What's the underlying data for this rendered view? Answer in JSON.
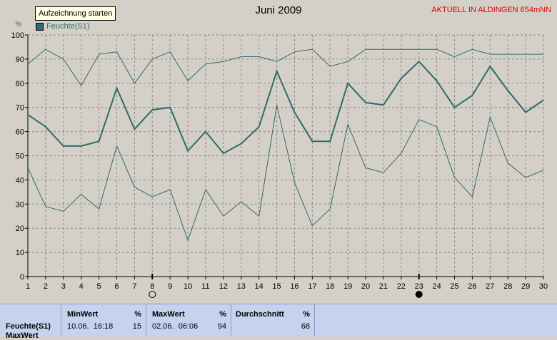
{
  "tooltip": "Aufzeichnung starten",
  "location": "AKTUELL IN ALDINGEN 654mNN",
  "stats": {
    "label": "Feuchte(S1)",
    "label2": "MaxWert",
    "min": {
      "header": "MinWert",
      "unit": "%",
      "when": "10.06.  16:18",
      "value": "15"
    },
    "max": {
      "header": "MaxWert",
      "unit": "%",
      "when": "02.06.  06:06",
      "value": "94"
    },
    "avg": {
      "header": "Durchschnitt",
      "unit": "%",
      "value": "68"
    }
  },
  "colors": {
    "series": "#2f6b6b",
    "grid": "#8a8a8a",
    "plot_bg": "#d4d0c8"
  },
  "chart_data": {
    "type": "line",
    "title": "Juni 2009",
    "ylabel": "%",
    "ylim": [
      0,
      100
    ],
    "yticks": [
      0,
      10,
      20,
      30,
      40,
      50,
      60,
      70,
      80,
      90,
      100
    ],
    "xlim": [
      1,
      30
    ],
    "x": [
      1,
      2,
      3,
      4,
      5,
      6,
      7,
      8,
      9,
      10,
      11,
      12,
      13,
      14,
      15,
      16,
      17,
      18,
      19,
      20,
      21,
      22,
      23,
      24,
      25,
      26,
      27,
      28,
      29,
      30
    ],
    "grid": true,
    "legend": {
      "position": "top-left"
    },
    "markers": [
      {
        "x": 8,
        "symbol": "open-circle"
      },
      {
        "x": 23,
        "symbol": "filled-circle"
      }
    ],
    "series": [
      {
        "name": "Feuchte(S1)",
        "role": "mean",
        "values": [
          67,
          62,
          54,
          54,
          56,
          78,
          61,
          69,
          70,
          52,
          60,
          51,
          55,
          62,
          85,
          68,
          56,
          56,
          80,
          72,
          71,
          82,
          89,
          81,
          70,
          75,
          87,
          77,
          68,
          73
        ]
      },
      {
        "role": "max",
        "values": [
          88,
          94,
          90,
          79,
          92,
          93,
          80,
          90,
          93,
          81,
          88,
          89,
          91,
          91,
          89,
          93,
          94,
          87,
          89,
          94,
          94,
          94,
          94,
          94,
          91,
          94,
          92,
          92,
          92,
          92
        ]
      },
      {
        "role": "min",
        "values": [
          45,
          29,
          27,
          34,
          28,
          54,
          37,
          33,
          36,
          15,
          36,
          25,
          31,
          25,
          71,
          39,
          21,
          28,
          63,
          45,
          43,
          51,
          65,
          62,
          41,
          33,
          66,
          47,
          41,
          44
        ]
      }
    ]
  }
}
